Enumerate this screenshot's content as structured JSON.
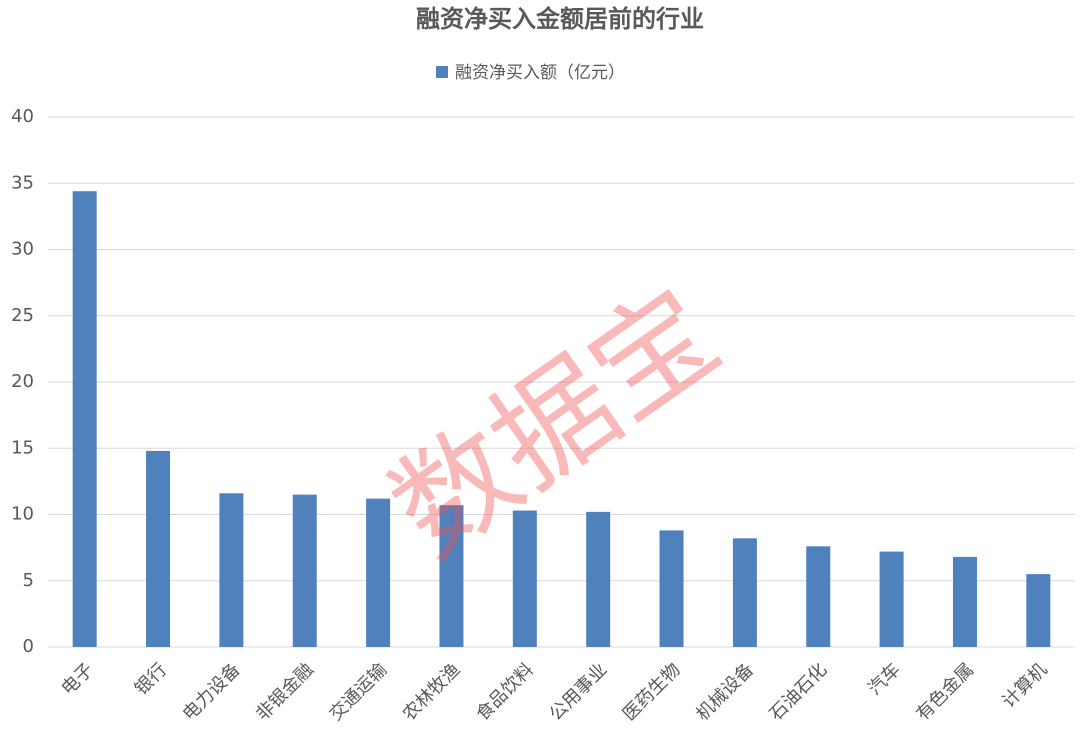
{
  "chart_data": {
    "type": "bar",
    "title": "融资净买入金额居前的行业",
    "watermark": "数据宝",
    "categories": [
      "电子",
      "银行",
      "电力设备",
      "非银金融",
      "交通运输",
      "农林牧渔",
      "食品饮料",
      "公用事业",
      "医药生物",
      "机械设备",
      "石油石化",
      "汽车",
      "有色金属",
      "计算机"
    ],
    "series": [
      {
        "name": "融资净买入额（亿元）",
        "color": "#4f81bd",
        "values": [
          34.4,
          14.8,
          11.6,
          11.5,
          11.2,
          10.7,
          10.3,
          10.2,
          8.8,
          8.2,
          7.6,
          7.2,
          6.8,
          5.5
        ]
      }
    ],
    "ylim": [
      0,
      40
    ],
    "yticks": [
      0,
      5,
      10,
      15,
      20,
      25,
      30,
      35,
      40
    ],
    "grid": true
  }
}
